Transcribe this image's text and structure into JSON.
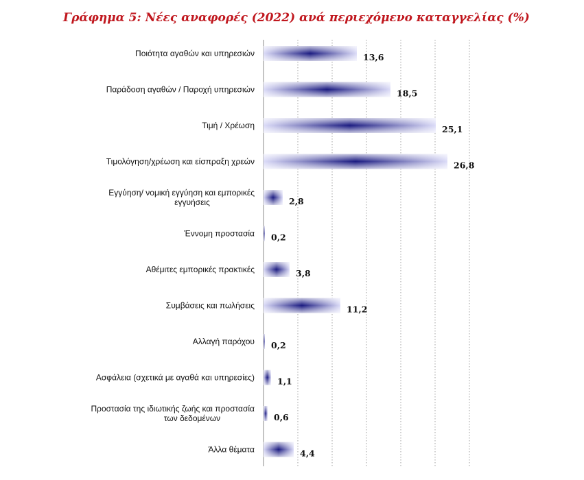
{
  "title": "Γράφημα 5: Νέες αναφορές (2022) ανά περιεχόμενο καταγγελίας (%)",
  "colors": {
    "title": "#c0171e",
    "bar_edge": "#dcdcf8",
    "bar_center": "#1a1a80",
    "grid": "#888888"
  },
  "chart_data": {
    "type": "bar",
    "orientation": "horizontal",
    "title": "Γράφημα 5: Νέες αναφορές (2022) ανά περιεχόμενο καταγγελίας (%)",
    "xlim": [
      0,
      30
    ],
    "grid_step": 5,
    "grid": true,
    "categories": [
      [
        "Ποιότητα αγαθών και υπηρεσιών"
      ],
      [
        "Παράδοση αγαθών / Παροχή υπηρεσιών"
      ],
      [
        "Τιμή / Χρέωση"
      ],
      [
        "Τιμολόγηση/χρέωση και είσπραξη χρεών"
      ],
      [
        "Εγγύηση/ νομική εγγύηση και εμπορικές",
        "εγγυήσεις"
      ],
      [
        "Έννομη προστασία"
      ],
      [
        "Αθέμιτες εμπορικές πρακτικές"
      ],
      [
        "Συμβάσεις και πωλήσεις"
      ],
      [
        "Αλλαγή παρόχου"
      ],
      [
        "Ασφάλεια (σχετικά με αγαθά και υπηρεσίες)"
      ],
      [
        "Προστασία της ιδιωτικής ζωής και προστασία",
        "των δεδομένων"
      ],
      [
        "Άλλα θέματα"
      ]
    ],
    "values": [
      13.6,
      18.5,
      25.1,
      26.8,
      2.8,
      0.2,
      3.8,
      11.2,
      0.2,
      1.1,
      0.6,
      4.4
    ],
    "value_labels": [
      "13,6",
      "18,5",
      "25,1",
      "26,8",
      "2,8",
      "0,2",
      "3,8",
      "11,2",
      "0,2",
      "1,1",
      "0,6",
      "4,4"
    ]
  }
}
